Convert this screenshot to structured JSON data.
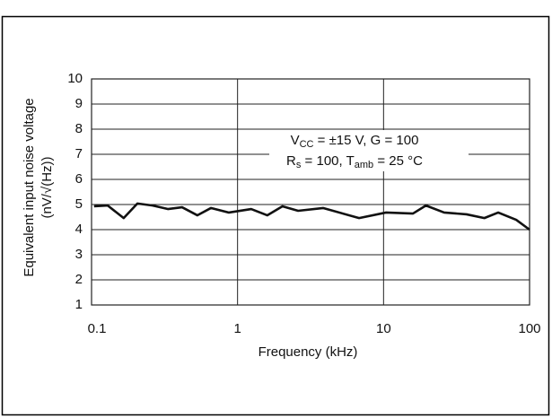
{
  "chart_data": {
    "type": "line",
    "xlabel": "Frequency (kHz)",
    "ylabel": [
      "Equivalent input  noise voltage",
      "(nV/√(Hz))"
    ],
    "annotation": [
      [
        "V",
        "CC",
        " = ±15 V, G = 100"
      ],
      [
        "R",
        "s",
        " = 100, T",
        "amb",
        " = 25 °C"
      ]
    ],
    "xscale": "log",
    "xlim": [
      0.1,
      100
    ],
    "xticks": [
      0.1,
      1,
      10,
      100
    ],
    "ylim": [
      1,
      10
    ],
    "yticks": [
      1,
      2,
      3,
      4,
      5,
      6,
      7,
      8,
      9,
      10
    ],
    "grid": true,
    "series": [
      {
        "color": "#111111",
        "x": [
          0.104,
          0.129,
          0.166,
          0.206,
          0.262,
          0.333,
          0.417,
          0.531,
          0.657,
          0.872,
          1.24,
          1.6,
          2.03,
          2.6,
          3.85,
          6.8,
          10.4,
          15.9,
          19.5,
          26,
          37,
          49,
          61,
          81,
          100
        ],
        "values": [
          4.93,
          4.96,
          4.46,
          5.04,
          4.96,
          4.82,
          4.89,
          4.57,
          4.86,
          4.68,
          4.82,
          4.57,
          4.93,
          4.75,
          4.86,
          4.46,
          4.68,
          4.64,
          4.96,
          4.68,
          4.61,
          4.46,
          4.68,
          4.39,
          4.0
        ]
      }
    ]
  }
}
